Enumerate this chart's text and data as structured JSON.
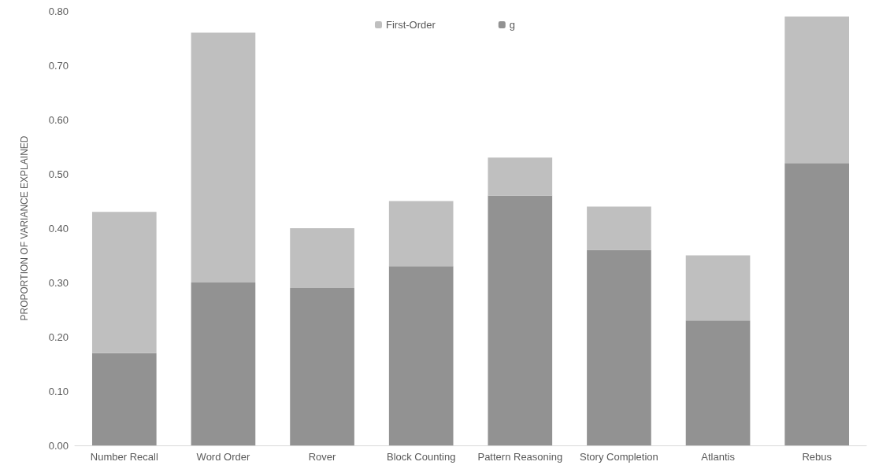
{
  "chart_data": {
    "type": "bar",
    "stacked": true,
    "ylabel": "PROPORTION OF VARIANCE EXPLAINED",
    "categories": [
      "Number Recall",
      "Word Order",
      "Rover",
      "Block Counting",
      "Pattern Reasoning",
      "Story Completion",
      "Atlantis",
      "Rebus"
    ],
    "series": [
      {
        "name": "g",
        "color": "#929292",
        "values": [
          0.17,
          0.3,
          0.29,
          0.33,
          0.46,
          0.36,
          0.23,
          0.52
        ]
      },
      {
        "name": "First-Order",
        "color": "#bfbfbf",
        "values": [
          0.26,
          0.46,
          0.11,
          0.12,
          0.07,
          0.08,
          0.12,
          0.27
        ]
      }
    ],
    "ylim": [
      0,
      0.8
    ],
    "yticks": [
      {
        "value": 0,
        "label": "0.00"
      },
      {
        "value": 0.1,
        "label": "0.10"
      },
      {
        "value": 0.2,
        "label": "0.20"
      },
      {
        "value": 0.3,
        "label": "0.30"
      },
      {
        "value": 0.4,
        "label": "0.40"
      },
      {
        "value": 0.5,
        "label": "0.50"
      },
      {
        "value": 0.6,
        "label": "0.60"
      },
      {
        "value": 0.7,
        "label": "0.70"
      },
      {
        "value": 0.8,
        "label": "0.80"
      }
    ],
    "grid": false,
    "legend": "top"
  }
}
